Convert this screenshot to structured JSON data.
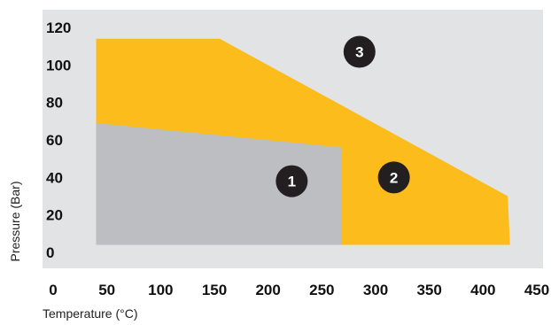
{
  "chart_data": {
    "type": "area",
    "x_ticks": [
      "0",
      "50",
      "100",
      "150",
      "200",
      "250",
      "300",
      "350",
      "400",
      "450"
    ],
    "y_ticks": [
      "0",
      "20",
      "40",
      "60",
      "80",
      "100",
      "120"
    ],
    "xlabel": "Temperature (°C)",
    "ylabel": "Pressure (Bar)",
    "xlim": [
      0,
      450
    ],
    "ylim": [
      0,
      125
    ],
    "grid": false,
    "colors": {
      "background": "#e2e3e5",
      "region_1": "#bcbec1",
      "region_2": "#fcbc1c",
      "badge": "#231f20",
      "badge_text": "#ffffff"
    },
    "regions": [
      {
        "label": "1",
        "points": [
          [
            40,
            4
          ],
          [
            40,
            69
          ],
          [
            268,
            56
          ],
          [
            268,
            4
          ]
        ],
        "label_at": [
          222,
          38
        ]
      },
      {
        "label": "2",
        "points": [
          [
            40,
            4
          ],
          [
            40,
            114
          ],
          [
            155,
            114
          ],
          [
            423,
            30
          ],
          [
            425,
            4
          ]
        ],
        "label_at": [
          317,
          40
        ]
      },
      {
        "label": "3",
        "points": [],
        "label_at": [
          285,
          107
        ]
      }
    ]
  }
}
